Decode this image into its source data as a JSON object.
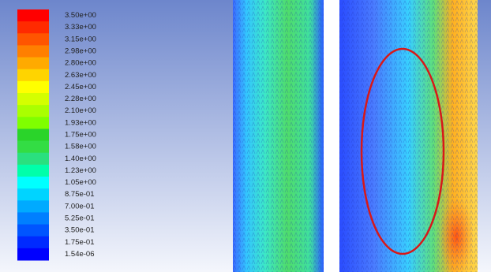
{
  "legend": {
    "entries": [
      {
        "label": "3.50e+00",
        "color": "#ff0000"
      },
      {
        "label": "3.33e+00",
        "color": "#ff2a00"
      },
      {
        "label": "3.15e+00",
        "color": "#ff5500"
      },
      {
        "label": "2.98e+00",
        "color": "#ff7f00"
      },
      {
        "label": "2.80e+00",
        "color": "#ffaa00"
      },
      {
        "label": "2.63e+00",
        "color": "#ffd400"
      },
      {
        "label": "2.45e+00",
        "color": "#ffff00"
      },
      {
        "label": "2.28e+00",
        "color": "#d4ff00"
      },
      {
        "label": "2.10e+00",
        "color": "#aaff00"
      },
      {
        "label": "1.93e+00",
        "color": "#7fff00"
      },
      {
        "label": "1.75e+00",
        "color": "#2ad42a"
      },
      {
        "label": "1.58e+00",
        "color": "#33dd44"
      },
      {
        "label": "1.40e+00",
        "color": "#2ae07f"
      },
      {
        "label": "1.23e+00",
        "color": "#00ffaa"
      },
      {
        "label": "1.05e+00",
        "color": "#00ffff"
      },
      {
        "label": "8.75e-01",
        "color": "#00d4ff"
      },
      {
        "label": "7.00e-01",
        "color": "#00aaff"
      },
      {
        "label": "5.25e-01",
        "color": "#007fff"
      },
      {
        "label": "3.50e-01",
        "color": "#0055ff"
      },
      {
        "label": "1.75e-01",
        "color": "#002aff"
      },
      {
        "label": "1.54e-06",
        "color": "#0000ff"
      }
    ]
  }
}
